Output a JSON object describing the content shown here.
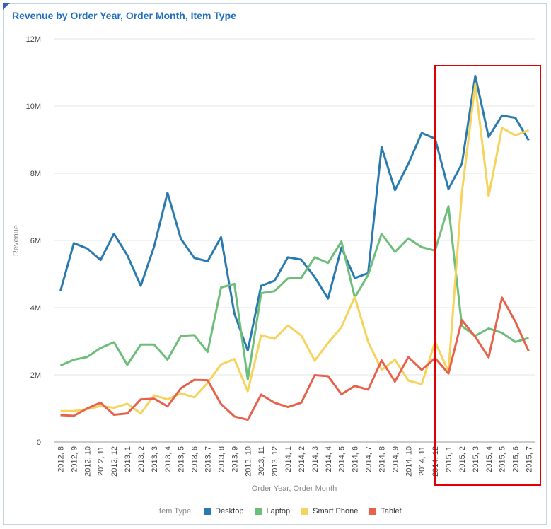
{
  "chart_data": {
    "type": "line",
    "title": "Revenue by Order Year, Order Month, Item Type",
    "xlabel": "Order Year, Order Month",
    "ylabel": "Revenue",
    "ylim": [
      0,
      12000000
    ],
    "yticks": [
      0,
      2000000,
      4000000,
      6000000,
      8000000,
      10000000,
      12000000
    ],
    "ytick_labels": [
      "0",
      "2M",
      "4M",
      "6M",
      "8M",
      "10M",
      "12M"
    ],
    "legend_title": "Item Type",
    "legend_position": "bottom",
    "categories": [
      "2012, 8",
      "2012, 9",
      "2012, 10",
      "2012, 11",
      "2012, 12",
      "2013, 1",
      "2013, 2",
      "2013, 3",
      "2013, 4",
      "2013, 5",
      "2013, 6",
      "2013, 7",
      "2013, 8",
      "2013, 9",
      "2013, 10",
      "2013, 11",
      "2013, 12",
      "2014, 1",
      "2014, 2",
      "2014, 3",
      "2014, 4",
      "2014, 5",
      "2014, 6",
      "2014, 7",
      "2014, 8",
      "2014, 9",
      "2014, 10",
      "2014, 11",
      "2014, 12",
      "2015, 1",
      "2015, 2",
      "2015, 3",
      "2015, 4",
      "2015, 5",
      "2015, 6",
      "2015, 7"
    ],
    "series": [
      {
        "name": "Desktop",
        "color": "#2a7ab0",
        "values": [
          4.5,
          5.92,
          5.76,
          5.42,
          6.2,
          5.56,
          4.65,
          5.82,
          7.42,
          6.05,
          5.48,
          5.38,
          6.1,
          3.82,
          2.72,
          4.65,
          4.8,
          5.5,
          5.43,
          4.91,
          4.27,
          5.79,
          4.88,
          5.03,
          8.78,
          7.5,
          8.28,
          9.2,
          9.03,
          7.53,
          8.28,
          10.9,
          9.08,
          9.72,
          9.65,
          8.98
        ]
      },
      {
        "name": "Laptop",
        "color": "#6dbe7a",
        "values": [
          2.28,
          2.45,
          2.53,
          2.8,
          2.97,
          2.3,
          2.9,
          2.9,
          2.45,
          3.16,
          3.18,
          2.68,
          4.6,
          4.71,
          1.86,
          4.43,
          4.49,
          4.87,
          4.89,
          5.5,
          5.33,
          5.97,
          4.3,
          4.98,
          6.2,
          5.66,
          6.06,
          5.8,
          5.7,
          7.02,
          3.45,
          3.16,
          3.38,
          3.25,
          2.98,
          3.1
        ]
      },
      {
        "name": "Smart Phone",
        "color": "#f5d35c",
        "values": [
          0.92,
          0.92,
          0.98,
          1.07,
          1.02,
          1.14,
          0.85,
          1.39,
          1.27,
          1.45,
          1.33,
          1.76,
          2.31,
          2.47,
          1.51,
          3.18,
          3.07,
          3.47,
          3.17,
          2.42,
          2.95,
          3.42,
          4.32,
          2.98,
          2.15,
          2.45,
          1.83,
          1.72,
          2.98,
          2.1,
          7.43,
          10.65,
          7.32,
          9.35,
          9.13,
          9.28
        ]
      },
      {
        "name": "Tablet",
        "color": "#e8614a",
        "values": [
          0.8,
          0.78,
          1.0,
          1.17,
          0.81,
          0.85,
          1.27,
          1.29,
          1.06,
          1.6,
          1.85,
          1.84,
          1.13,
          0.76,
          0.66,
          1.41,
          1.17,
          1.04,
          1.17,
          1.99,
          1.96,
          1.42,
          1.67,
          1.56,
          2.43,
          1.8,
          2.53,
          2.15,
          2.5,
          2.04,
          3.63,
          3.13,
          2.52,
          4.3,
          3.58,
          2.7
        ]
      }
    ],
    "value_scale": 1000000
  }
}
